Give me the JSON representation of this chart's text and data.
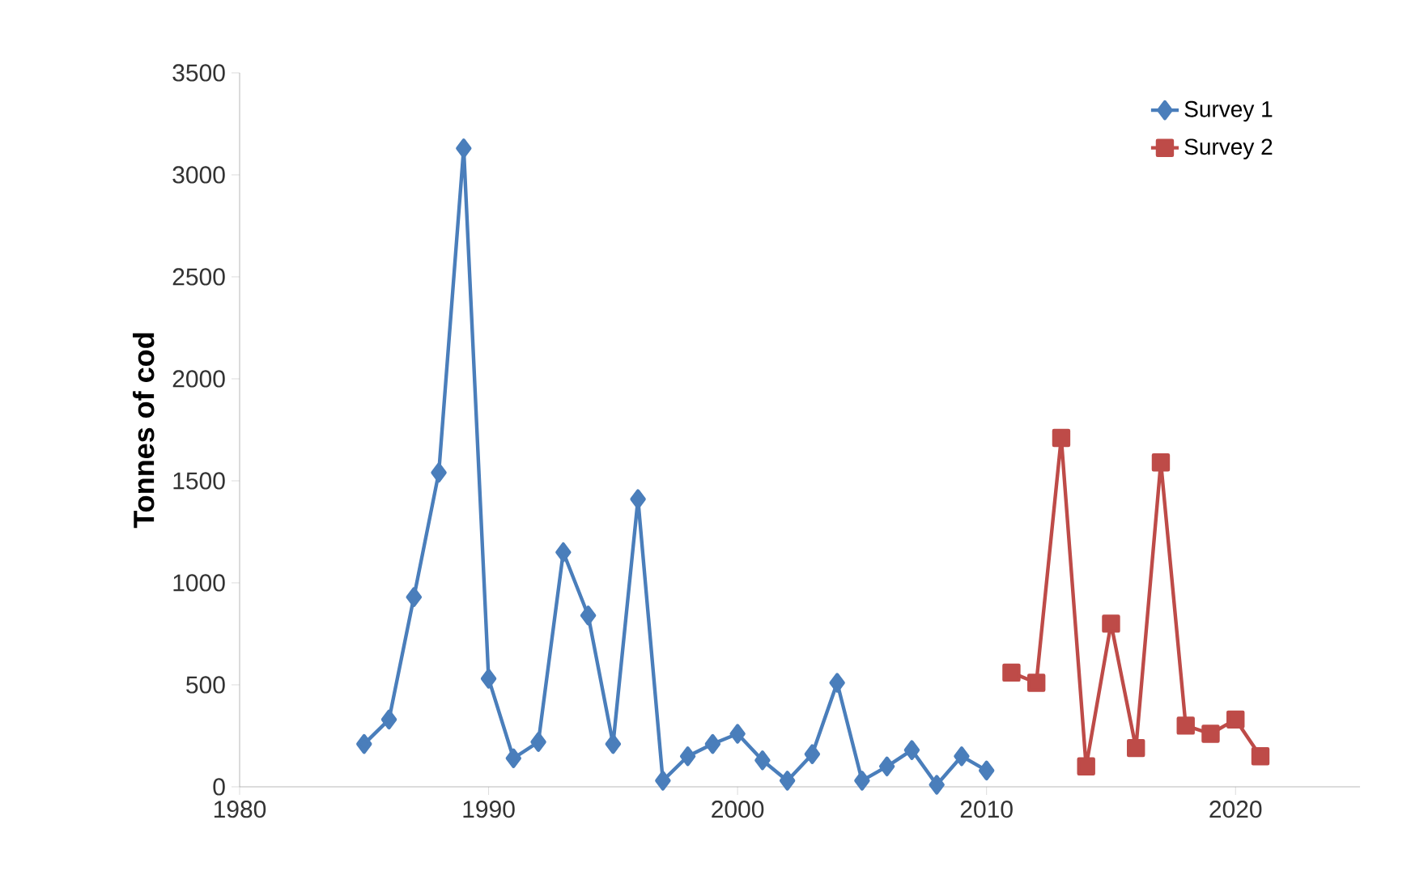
{
  "chart_data": {
    "type": "line",
    "ylabel": "Tonnes of cod",
    "series": [
      {
        "name": "Survey 1",
        "color": "#4a7ebb",
        "marker": "diamond",
        "x": [
          1985,
          1986,
          1987,
          1988,
          1989,
          1990,
          1991,
          1992,
          1993,
          1994,
          1995,
          1996,
          1997,
          1998,
          1999,
          2000,
          2001,
          2002,
          2003,
          2004,
          2005,
          2006,
          2007,
          2008,
          2009,
          2010
        ],
        "values": [
          210,
          330,
          930,
          1540,
          3130,
          530,
          140,
          220,
          1150,
          840,
          210,
          1410,
          30,
          150,
          210,
          260,
          130,
          30,
          160,
          510,
          30,
          100,
          180,
          10,
          150,
          80
        ]
      },
      {
        "name": "Survey 2",
        "color": "#be4b48",
        "marker": "square",
        "x": [
          2011,
          2012,
          2013,
          2014,
          2015,
          2016,
          2017,
          2018,
          2019,
          2020,
          2021
        ],
        "values": [
          560,
          510,
          1710,
          100,
          800,
          190,
          1590,
          300,
          260,
          330,
          150
        ]
      }
    ],
    "xlim": [
      1980,
      2025
    ],
    "xticks": [
      1980,
      1990,
      2000,
      2010,
      2020
    ],
    "ylim": [
      0,
      3500
    ],
    "yticks": [
      0,
      500,
      1000,
      1500,
      2000,
      2500,
      3000,
      3500
    ],
    "grid": false,
    "legend": "top right"
  }
}
